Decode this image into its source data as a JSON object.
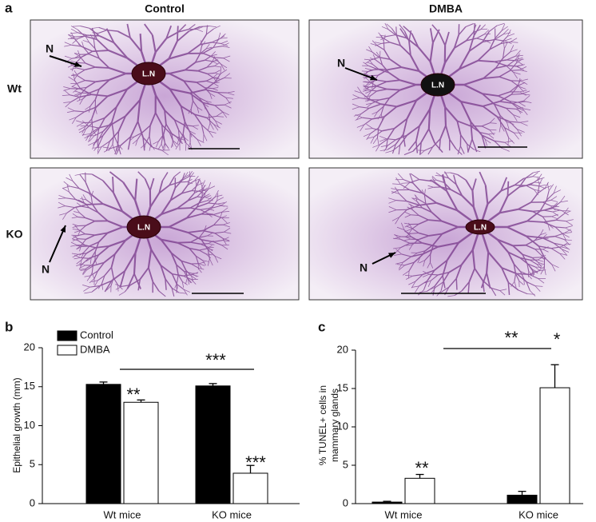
{
  "panel_a": {
    "label": "a",
    "columns": [
      "Control",
      "DMBA"
    ],
    "rows": [
      "Wt",
      "KO"
    ],
    "images": [
      {
        "nerve": "N",
        "lymph_node": "L.N"
      },
      {
        "nerve": "N",
        "lymph_node": "L.N"
      },
      {
        "nerve": "N",
        "lymph_node": "L.N"
      },
      {
        "nerve": "N",
        "lymph_node": "L.N"
      }
    ]
  },
  "chart_data": [
    {
      "type": "bar",
      "panel_label": "b",
      "y_label": "Epithelial growth (mm)",
      "categories": [
        "Wt mice",
        "KO mice"
      ],
      "series": [
        {
          "name": "Control",
          "color": "#000000",
          "values": [
            15.3,
            15.1
          ],
          "errors": [
            0.3,
            0.3
          ]
        },
        {
          "name": "DMBA",
          "color": "#ffffff",
          "values": [
            13.0,
            3.9
          ],
          "errors": [
            0.3,
            1.0
          ]
        }
      ],
      "ylim": [
        0,
        20
      ],
      "yticks": [
        0,
        5,
        10,
        15,
        20
      ],
      "legend": "upper left",
      "annotations": [
        "**",
        "***",
        "***"
      ]
    },
    {
      "type": "bar",
      "panel_label": "c",
      "y_label": [
        "% TUNEL+ cells in",
        "mammary glands"
      ],
      "categories": [
        "Wt mice",
        "KO mice"
      ],
      "series": [
        {
          "color": "#000000",
          "values": [
            0.2,
            1.1
          ],
          "errors": [
            0.1,
            0.5
          ]
        },
        {
          "color": "#ffffff",
          "values": [
            3.3,
            15.1
          ],
          "errors": [
            0.5,
            3.0
          ]
        }
      ],
      "ylim": [
        0,
        20
      ],
      "yticks": [
        0,
        5,
        10,
        15,
        20
      ],
      "annotations": [
        "**",
        "*",
        "**"
      ]
    }
  ]
}
